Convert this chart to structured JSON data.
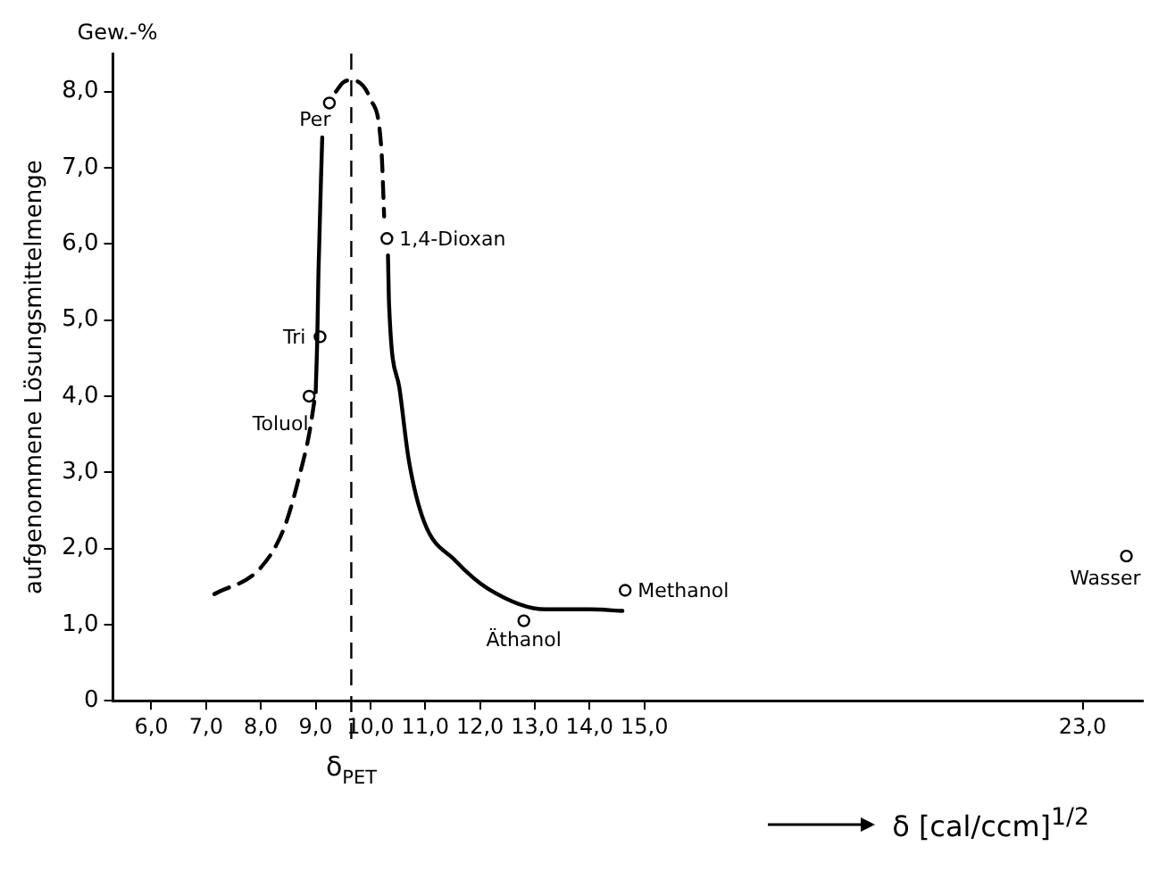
{
  "chart_data": {
    "type": "line",
    "ylabel": "aufgenommene Lösungsmittelmenge",
    "xlabel": "δ [cal/ccm]$^{1/2}$",
    "xlim": [
      5.3,
      24.1
    ],
    "xticks": [
      {
        "value": 6,
        "label": "6,0"
      },
      {
        "value": 7,
        "label": "7,0"
      },
      {
        "value": 8,
        "label": "8,0"
      },
      {
        "value": 9,
        "label": "9,0"
      },
      {
        "value": 10,
        "label": "10,0"
      },
      {
        "value": 11,
        "label": "11,0"
      },
      {
        "value": 12,
        "label": "12,0"
      },
      {
        "value": 13,
        "label": "13,0"
      },
      {
        "value": 14,
        "label": "14,0"
      },
      {
        "value": 15,
        "label": "15,0"
      },
      {
        "value": 23,
        "label": "23,0"
      }
    ],
    "ylim": [
      0,
      8.5
    ],
    "yticks": [
      0,
      {
        "value": 1,
        "label": "1,0"
      },
      {
        "value": 2,
        "label": "2,0"
      },
      {
        "value": 3,
        "label": "3,0"
      },
      {
        "value": 4,
        "label": "4,0"
      },
      {
        "value": 5,
        "label": "5,0"
      },
      {
        "value": 6,
        "label": "6,0"
      },
      {
        "value": 7,
        "label": "7,0"
      },
      {
        "value": 8,
        "label": "8,0"
      }
    ],
    "grid": false,
    "legend": false,
    "series": [
      {
        "type": "line",
        "color": "#000000",
        "line_style": "dashed",
        "marker": "none",
        "x": [
          7.15,
          8.0,
          8.43,
          8.72,
          8.88,
          9.0
        ],
        "values": [
          1.4,
          1.75,
          2.28,
          3.0,
          3.5,
          4.05
        ]
      },
      {
        "type": "line",
        "color": "#000000",
        "line_style": "solid",
        "marker": "none",
        "x": [
          9.0,
          9.03,
          9.05,
          9.12
        ],
        "values": [
          4.05,
          4.78,
          5.6,
          7.4
        ]
      },
      {
        "type": "line",
        "color": "#000000",
        "line_style": "dashed",
        "marker": "none",
        "x": [
          9.37,
          9.5,
          9.65,
          10.0,
          10.2,
          10.25
        ],
        "values": [
          8.0,
          8.12,
          8.15,
          7.9,
          7.24,
          6.36
        ]
      },
      {
        "type": "line",
        "color": "#000000",
        "line_style": "solid",
        "marker": "none",
        "x": [
          10.32,
          10.34,
          10.53,
          10.7,
          10.98,
          11.55,
          12.15,
          13.2,
          14.0,
          14.6
        ],
        "values": [
          5.85,
          5.2,
          4.1,
          3.16,
          2.35,
          1.84,
          1.47,
          1.2,
          1.2,
          1.18
        ]
      },
      {
        "type": "scatter",
        "color": "#000000",
        "marker": "circle",
        "x": [
          9.25,
          9.08,
          8.88,
          10.3,
          12.8,
          14.65,
          23.8
        ],
        "values": [
          7.85,
          4.78,
          4.0,
          6.07,
          1.05,
          1.45,
          1.9
        ]
      }
    ],
    "ref_lines": [
      {
        "axis": "x",
        "value": 9.65,
        "label": "δ$_{PET}$",
        "line_style": "dashed"
      }
    ],
    "annotations": [
      "Gew.-%",
      {
        "text": "Per",
        "x": 9.25,
        "y": 7.85
      },
      {
        "text": "Tri",
        "x": 9.08,
        "y": 4.78
      },
      {
        "text": "Toluol",
        "x": 8.88,
        "y": 4.0
      },
      {
        "text": "1,4-Dioxan",
        "x": 10.3,
        "y": 6.07
      },
      {
        "text": "Äthanol",
        "x": 12.8,
        "y": 1.05
      },
      {
        "text": "Methanol",
        "x": 14.65,
        "y": 1.45
      },
      {
        "text": "Wasser",
        "x": 23.8,
        "y": 1.9
      }
    ]
  }
}
